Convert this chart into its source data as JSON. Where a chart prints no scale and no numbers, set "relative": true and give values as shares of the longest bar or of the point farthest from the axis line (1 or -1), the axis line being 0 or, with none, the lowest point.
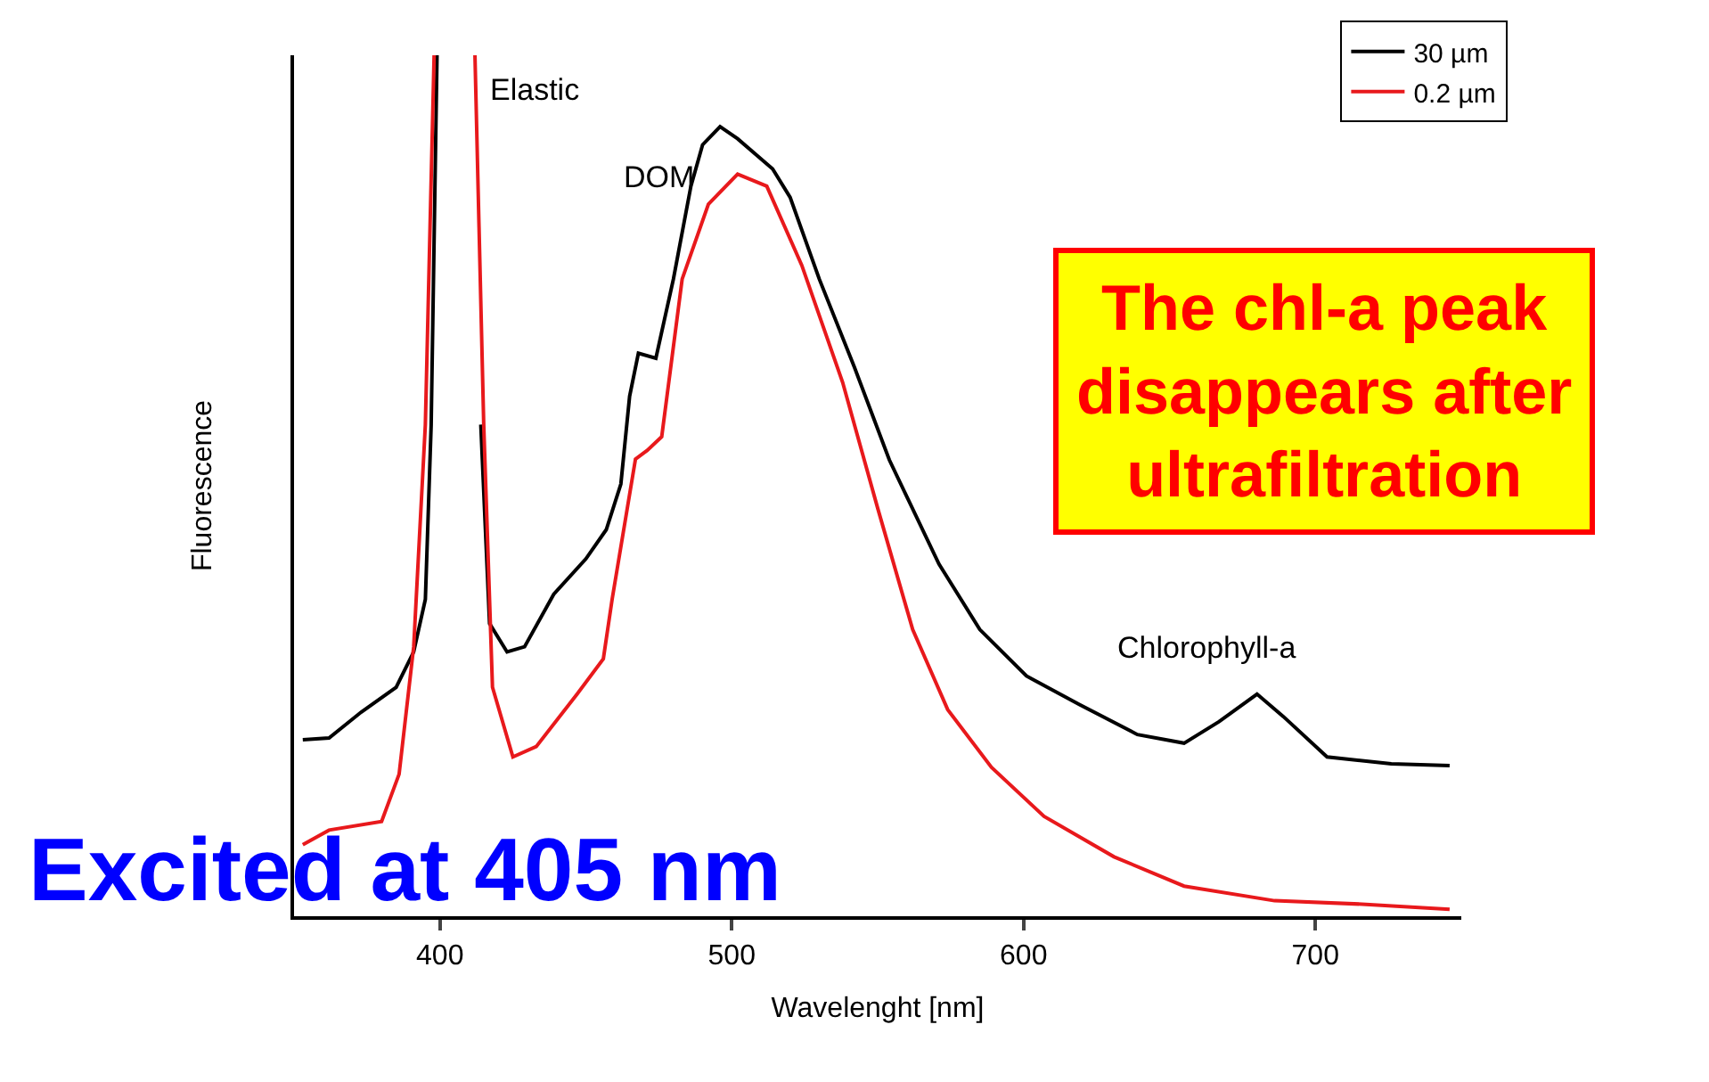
{
  "chart_data": {
    "type": "line",
    "relative": true,
    "xlabel": "Wavelenght [nm]",
    "ylabel": "Fluorescence",
    "xlim": [
      350,
      750
    ],
    "xticks": [
      400,
      500,
      600,
      700
    ],
    "legend": "top right",
    "marker": "none",
    "line_style": "solid",
    "series": [
      {
        "name": "30 µm",
        "color": "#000000",
        "x": [
          353,
          362,
          373,
          385,
          391,
          395,
          397,
          399,
          405,
          412,
          414,
          417,
          423,
          429,
          439,
          450,
          457,
          462,
          465,
          468,
          474,
          480,
          486,
          490,
          496,
          502,
          514,
          520,
          530,
          542,
          554,
          571,
          585,
          601,
          619,
          639,
          655,
          667,
          680,
          689,
          704,
          726,
          746
        ],
        "values": [
          0.205,
          0.207,
          0.237,
          0.266,
          0.307,
          0.368,
          0.571,
          1,
          null,
          null,
          0.571,
          0.34,
          0.307,
          0.313,
          0.374,
          0.415,
          0.449,
          0.502,
          0.604,
          0.654,
          0.648,
          0.74,
          0.848,
          0.896,
          0.917,
          0.903,
          0.868,
          0.835,
          0.74,
          0.638,
          0.53,
          0.409,
          0.333,
          0.279,
          0.246,
          0.211,
          0.201,
          0.226,
          0.258,
          0.232,
          0.185,
          0.177,
          0.175
        ]
      },
      {
        "name": "0.2 µm",
        "color": "#e8191c",
        "x": [
          353,
          362,
          380,
          386,
          391,
          395,
          398,
          405,
          412,
          415,
          418,
          425,
          433,
          447,
          456,
          459,
          467,
          471,
          476,
          483,
          492,
          502,
          512,
          524,
          538,
          550,
          562,
          574,
          589,
          607,
          631,
          655,
          686,
          716,
          746
        ],
        "values": [
          0.083,
          0.1,
          0.11,
          0.165,
          0.313,
          0.571,
          1,
          null,
          1,
          0.571,
          0.266,
          0.185,
          0.197,
          0.258,
          0.299,
          0.368,
          0.531,
          0.541,
          0.557,
          0.74,
          0.827,
          0.862,
          0.848,
          0.756,
          0.62,
          0.474,
          0.333,
          0.24,
          0.173,
          0.116,
          0.069,
          0.035,
          0.018,
          0.014,
          0.008
        ]
      }
    ],
    "annotations": [
      {
        "text": "Elastic",
        "x": 412,
        "y": 0.96
      },
      {
        "text": "DOM",
        "x": 496,
        "y": 0.917
      },
      {
        "text": "Chlorophyll-a",
        "x": 680,
        "y": 0.258
      },
      "The chl-a peak\ndisappears after\nultrafiltration",
      "Excited at 405 nm"
    ]
  }
}
